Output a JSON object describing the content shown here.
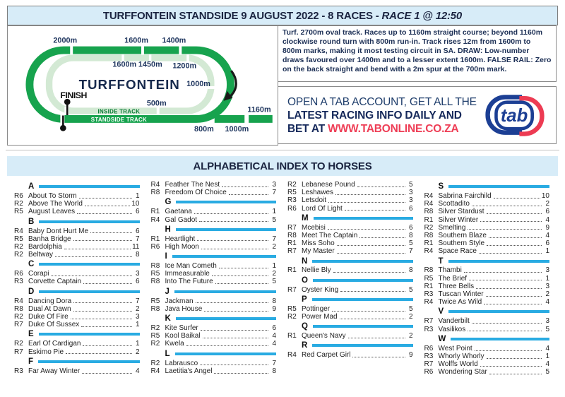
{
  "header": {
    "title": "TURFFONTEIN STANDSIDE 9 AUGUST 2022 - 8 RACES - ",
    "race_info": "RACE 1 @ 12:50"
  },
  "track_info": "Turf. 2700m oval track. Races up to 1160m straight course; beyond 1160m clockwise round turn with 800m run-in. Track rises 12m from 1600m to 800m marks, making it most testing circuit in SA. DRAW: Low-number draws favoured over 1400m and to a lesser extent 1600m. FALSE RAIL: Zero on the back straight and bend with a 2m spur at the 700m mark.",
  "track_map": {
    "name": "TURFFONTEIN",
    "finish": "FINISH",
    "inside_track": "INSIDE TRACK",
    "standside_track": "STANDSIDE TRACK",
    "mark_2000": "2000m",
    "mark_1600_outer": "1600m",
    "mark_1400": "1400m",
    "mark_1600_inner": "1600m",
    "mark_1450": "1450m",
    "mark_1200": "1200m",
    "mark_1000_inner": "1000m",
    "mark_500": "500m",
    "mark_1160": "1160m",
    "mark_800": "800m",
    "mark_1000_chute": "1000m"
  },
  "ad": {
    "line1": "OPEN A TAB ACCOUNT, GET ALL THE",
    "line2": "LATEST RACING INFO DAILY AND",
    "line3_prefix": "BET AT ",
    "line3_url": "WWW.TABONLINE.CO.ZA",
    "logo_text": "tab"
  },
  "index": {
    "title": "ALPHABETICAL INDEX TO HORSES",
    "columns": [
      [
        {
          "letter": "A"
        },
        {
          "race": "R6",
          "name": "About To Storm",
          "page": "1"
        },
        {
          "race": "R2",
          "name": "Above The World",
          "page": "10"
        },
        {
          "race": "R5",
          "name": "August Leaves",
          "page": "6"
        },
        {
          "letter": "B"
        },
        {
          "race": "R4",
          "name": "Baby Dont Hurt Me",
          "page": "6"
        },
        {
          "race": "R5",
          "name": "Banha Bridge",
          "page": "7"
        },
        {
          "race": "R2",
          "name": "Bardolphia",
          "page": "11"
        },
        {
          "race": "R2",
          "name": "Beltway",
          "page": "8"
        },
        {
          "letter": "C"
        },
        {
          "race": "R6",
          "name": "Corapi",
          "page": "3"
        },
        {
          "race": "R3",
          "name": "Corvette Captain",
          "page": "6"
        },
        {
          "letter": "D"
        },
        {
          "race": "R4",
          "name": "Dancing Dora",
          "page": "7"
        },
        {
          "race": "R8",
          "name": "Dual At Dawn",
          "page": "2"
        },
        {
          "race": "R2",
          "name": "Duke Of Fire",
          "page": "3"
        },
        {
          "race": "R7",
          "name": "Duke Of Sussex",
          "page": "1"
        },
        {
          "letter": "E"
        },
        {
          "race": "R2",
          "name": "Earl Of Cardigan",
          "page": "1"
        },
        {
          "race": "R7",
          "name": "Eskimo Pie",
          "page": "2"
        },
        {
          "letter": "F"
        },
        {
          "race": "R3",
          "name": "Far Away Winter",
          "page": "4"
        }
      ],
      [
        {
          "race": "R4",
          "name": "Feather The Nest",
          "page": "3"
        },
        {
          "race": "R8",
          "name": "Freedom Of Choice",
          "page": "7"
        },
        {
          "letter": "G"
        },
        {
          "race": "R1",
          "name": "Gaetana",
          "page": "1"
        },
        {
          "race": "R4",
          "name": "Gal Gadot",
          "page": "5"
        },
        {
          "letter": "H"
        },
        {
          "race": "R1",
          "name": "Heartlight",
          "page": "7"
        },
        {
          "race": "R6",
          "name": "High Moon",
          "page": "2"
        },
        {
          "letter": "I"
        },
        {
          "race": "R8",
          "name": "Ice Man Cometh",
          "page": "1"
        },
        {
          "race": "R5",
          "name": "Immeasurable",
          "page": "2"
        },
        {
          "race": "R8",
          "name": "Into The Future",
          "page": "5"
        },
        {
          "letter": "J"
        },
        {
          "race": "R5",
          "name": "Jackman",
          "page": "8"
        },
        {
          "race": "R8",
          "name": "Java House",
          "page": "9"
        },
        {
          "letter": "K"
        },
        {
          "race": "R2",
          "name": "Kite Surfer",
          "page": "6"
        },
        {
          "race": "R5",
          "name": "Kool Baikal",
          "page": "4"
        },
        {
          "race": "R2",
          "name": "Kwela",
          "page": "4"
        },
        {
          "letter": "L"
        },
        {
          "race": "R2",
          "name": "Labrausco",
          "page": "7"
        },
        {
          "race": "R4",
          "name": "Laetitia's Angel",
          "page": "8"
        }
      ],
      [
        {
          "race": "R2",
          "name": "Lebanese Pound",
          "page": "5"
        },
        {
          "race": "R5",
          "name": "Leshawes",
          "page": "3"
        },
        {
          "race": "R3",
          "name": "Letsdoit",
          "page": "3"
        },
        {
          "race": "R6",
          "name": "Lord Of Light",
          "page": "6"
        },
        {
          "letter": "M"
        },
        {
          "race": "R7",
          "name": "Mcebisi",
          "page": "6"
        },
        {
          "race": "R8",
          "name": "Meet The Captain",
          "page": "8"
        },
        {
          "race": "R1",
          "name": "Miss Soho",
          "page": "5"
        },
        {
          "race": "R7",
          "name": "My Master",
          "page": "7"
        },
        {
          "letter": "N"
        },
        {
          "race": "R1",
          "name": "Nellie Bly",
          "page": "8"
        },
        {
          "letter": "O"
        },
        {
          "race": "R7",
          "name": "Oyster King",
          "page": "5"
        },
        {
          "letter": "P"
        },
        {
          "race": "R5",
          "name": "Pottinger",
          "page": "5"
        },
        {
          "race": "R2",
          "name": "Power Mad",
          "page": "2"
        },
        {
          "letter": "Q"
        },
        {
          "race": "R1",
          "name": "Queen's Navy",
          "page": "2"
        },
        {
          "letter": "R"
        },
        {
          "race": "R4",
          "name": "Red Carpet Girl",
          "page": "9"
        }
      ],
      [
        {
          "letter": "S"
        },
        {
          "race": "R4",
          "name": "Sabrina Fairchild",
          "page": "10"
        },
        {
          "race": "R4",
          "name": "Scottadito",
          "page": "2"
        },
        {
          "race": "R8",
          "name": "Silver Stardust",
          "page": "6"
        },
        {
          "race": "R1",
          "name": "Silver Winter",
          "page": "4"
        },
        {
          "race": "R2",
          "name": "Smelting",
          "page": "9"
        },
        {
          "race": "R8",
          "name": "Southern Blaze",
          "page": "4"
        },
        {
          "race": "R1",
          "name": "Southern Style",
          "page": "6"
        },
        {
          "race": "R4",
          "name": "Space Race",
          "page": "1"
        },
        {
          "letter": "T"
        },
        {
          "race": "R8",
          "name": "Thambi",
          "page": "3"
        },
        {
          "race": "R5",
          "name": "The Brief",
          "page": "1"
        },
        {
          "race": "R1",
          "name": "Three Bells",
          "page": "3"
        },
        {
          "race": "R3",
          "name": "Tuscan Winter",
          "page": "2"
        },
        {
          "race": "R4",
          "name": "Twice As Wild",
          "page": "4"
        },
        {
          "letter": "V"
        },
        {
          "race": "R7",
          "name": "Vanderbilt",
          "page": "3"
        },
        {
          "race": "R3",
          "name": "Vasilikos",
          "page": "5"
        },
        {
          "letter": "W"
        },
        {
          "race": "R6",
          "name": "West Point",
          "page": "4"
        },
        {
          "race": "R3",
          "name": "Whorly Whorly",
          "page": "1"
        },
        {
          "race": "R7",
          "name": "Wolffs World",
          "page": "4"
        },
        {
          "race": "R6",
          "name": "Wondering Star",
          "page": "5"
        }
      ]
    ]
  },
  "colors": {
    "header_bg": "#d7ecf8",
    "track_green": "#17a34e",
    "track_light_green": "#d3e9d4",
    "navy": "#1e355e",
    "index_bar_cyan": "#29abe2",
    "url_red": "#ee3e56",
    "logo_blue": "#1c3f94"
  }
}
